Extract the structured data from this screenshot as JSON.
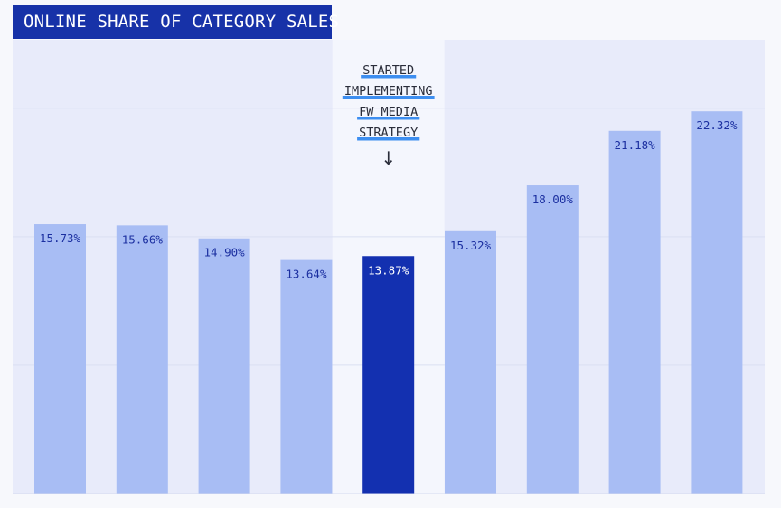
{
  "title": "ONLINE SHARE OF CATEGORY SALES",
  "colors": {
    "title_bg": "#1732a8",
    "plot_bg": "#e8ebfa",
    "highlight_band": "#f4f6fd",
    "bar": "#a8bdf4",
    "bar_highlight": "#1330b0",
    "label": "#1b2fa0",
    "gridline": "#dadff2",
    "annotation_underline": "#3d8ef0"
  },
  "annotation": {
    "lines": [
      "STARTED",
      "IMPLEMENTING",
      "FW MEDIA",
      "STRATEGY"
    ],
    "arrow": "↓",
    "icon": "down-arrow-icon"
  },
  "chart_data": {
    "type": "bar",
    "title": "ONLINE SHARE OF CATEGORY SALES",
    "categories": [
      "",
      "",
      "",
      "",
      "",
      "",
      "",
      "",
      ""
    ],
    "values": [
      15.73,
      15.66,
      14.9,
      13.64,
      13.87,
      15.32,
      18.0,
      21.18,
      22.32
    ],
    "value_labels": [
      "15.73%",
      "15.66%",
      "14.90%",
      "13.64%",
      "13.87%",
      "15.32%",
      "18.00%",
      "21.18%",
      "22.32%"
    ],
    "highlight_index": 4,
    "ylim": [
      0,
      26.5
    ],
    "gridlines": [
      7.5,
      15,
      22.5
    ],
    "xlabel": "",
    "ylabel": "",
    "legend": "none"
  }
}
